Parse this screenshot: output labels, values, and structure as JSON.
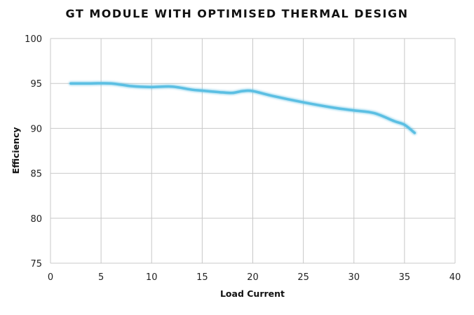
{
  "chart_data": {
    "type": "line",
    "title": "GT MODULE WITH OPTIMISED THERMAL DESIGN",
    "xlabel": "Load Current",
    "ylabel": "Efficiency",
    "xlim": [
      0,
      40
    ],
    "ylim": [
      75,
      100
    ],
    "xticks": [
      0,
      5,
      10,
      15,
      20,
      25,
      30,
      35,
      40
    ],
    "yticks": [
      75,
      80,
      85,
      90,
      95,
      100
    ],
    "grid": true,
    "line_color": "#5bbfe3",
    "series": [
      {
        "x": [
          2,
          4,
          6,
          8,
          10,
          12,
          14,
          15,
          17,
          18,
          19,
          20,
          22,
          25,
          28,
          30,
          32,
          34,
          35,
          36
        ],
        "y": [
          95.0,
          95.0,
          95.0,
          94.7,
          94.6,
          94.65,
          94.3,
          94.2,
          94.0,
          93.95,
          94.15,
          94.15,
          93.6,
          92.9,
          92.3,
          92.0,
          91.7,
          90.8,
          90.4,
          89.5
        ]
      }
    ]
  }
}
